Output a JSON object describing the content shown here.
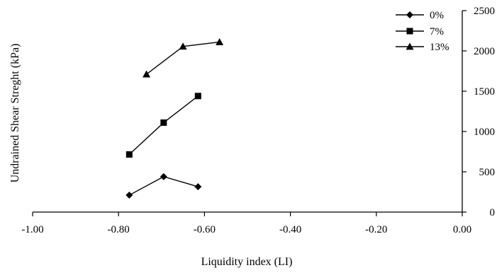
{
  "chart_data": {
    "type": "line",
    "title": "",
    "xlabel": "Liquidity index (LI)",
    "ylabel": "Undrained Shear Streght (kPa)",
    "xlim": [
      -1.0,
      0.0
    ],
    "ylim": [
      0,
      2500
    ],
    "x_ticks": [
      "-1.00",
      "-0.80",
      "-0.60",
      "-0.40",
      "-0.20",
      "0.00"
    ],
    "y_ticks": [
      "0",
      "500",
      "1000",
      "1500",
      "2000",
      "2500"
    ],
    "y_axis_side": "right",
    "grid": false,
    "legend_position": "top-right",
    "series": [
      {
        "name": "0%",
        "marker": "diamond",
        "x": [
          -0.775,
          -0.695,
          -0.615
        ],
        "y": [
          210,
          440,
          315
        ]
      },
      {
        "name": "7%",
        "marker": "square",
        "x": [
          -0.775,
          -0.695,
          -0.615
        ],
        "y": [
          715,
          1110,
          1440
        ]
      },
      {
        "name": "13%",
        "marker": "triangle",
        "x": [
          -0.735,
          -0.65,
          -0.565
        ],
        "y": [
          1710,
          2055,
          2110
        ]
      }
    ],
    "colors": {
      "line": "#000000",
      "marker": "#000000"
    }
  }
}
